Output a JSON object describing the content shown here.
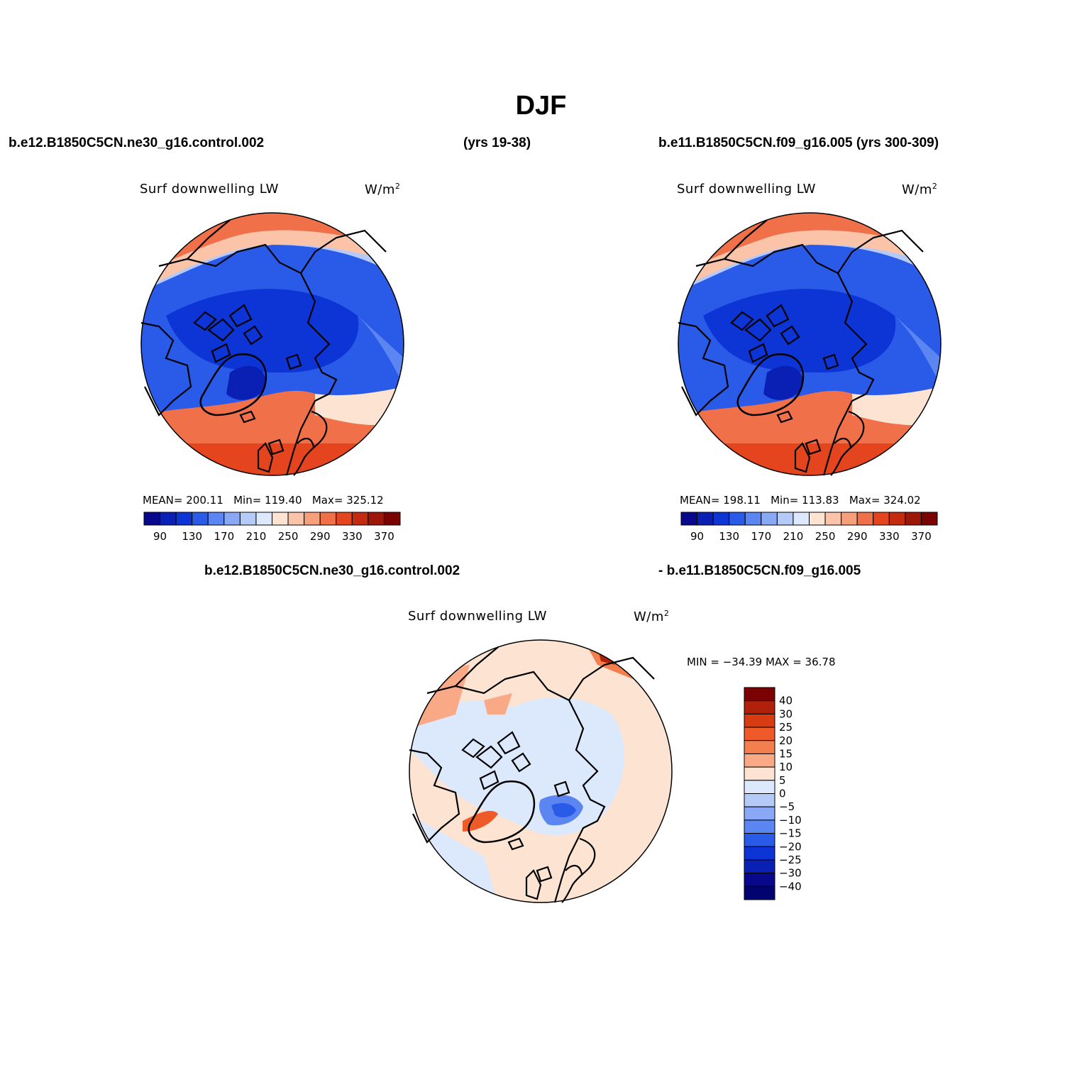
{
  "title": "DJF",
  "headers": {
    "left_case": "b.e12.B1850C5CN.ne30_g16.control.002",
    "left_years": "(yrs 19-38)",
    "right_case": "b.e11.B1850C5CN.f09_g16.005 (yrs 300-309)",
    "diff_case_a": "b.e12.B1850C5CN.ne30_g16.control.002",
    "diff_case_b": "- b.e11.B1850C5CN.f09_g16.005"
  },
  "panels": [
    {
      "id": "panel-left",
      "variable": "Surf downwelling LW",
      "units": "W/m",
      "units_sup": "2",
      "mean_label": "MEAN=",
      "mean": "200.11",
      "min_label": "Min=",
      "min": "119.40",
      "max_label": "Max=",
      "max": "325.12"
    },
    {
      "id": "panel-right",
      "variable": "Surf downwelling LW",
      "units": "W/m",
      "units_sup": "2",
      "mean_label": "MEAN=",
      "mean": "198.11",
      "min_label": "Min=",
      "min": "113.83",
      "max_label": "Max=",
      "max": "324.02"
    }
  ],
  "diff_panel": {
    "variable": "Surf downwelling LW",
    "units": "W/m",
    "units_sup": "2",
    "minmax": "MIN = −34.39 MAX =  36.78"
  },
  "colorbar_main": {
    "colors": [
      "#08088c",
      "#0a1fb4",
      "#0d35d6",
      "#2a5be8",
      "#5b85f0",
      "#89a8f5",
      "#b6caf8",
      "#dce8fb",
      "#fde3d2",
      "#fbc4a8",
      "#f79e7a",
      "#f07149",
      "#e4451f",
      "#c42b0e",
      "#9e1608",
      "#7a0202"
    ],
    "tick_labels": [
      "90",
      "130",
      "170",
      "210",
      "250",
      "290",
      "330",
      "370"
    ]
  },
  "colorbar_diff": {
    "colors": [
      "#7a0202",
      "#b0200a",
      "#d83a12",
      "#ee5a28",
      "#f47f4e",
      "#f9a986",
      "#fde3d2",
      "#dce8fb",
      "#b6caf8",
      "#89a8f5",
      "#5b85f0",
      "#2a5be8",
      "#0d35d6",
      "#0a1fb4",
      "#08088c",
      "#030370"
    ],
    "tick_labels": [
      "40",
      "30",
      "25",
      "20",
      "15",
      "10",
      "5",
      "0",
      "−5",
      "−10",
      "−15",
      "−20",
      "−25",
      "−30",
      "−40"
    ]
  }
}
